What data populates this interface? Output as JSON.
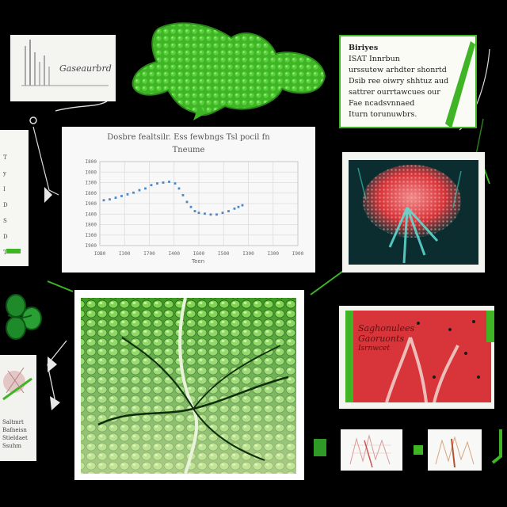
{
  "palette": {
    "background": "#000000",
    "accent_green": "#3fb526",
    "tissue_red": "#d8353a",
    "chart_point": "#4f87c4"
  },
  "icons": [
    "leaf-cell-icon",
    "clover-icon",
    "plus-arrow-icon",
    "leaf-square-icon",
    "hook-arrow-icon"
  ],
  "top_thumb": {
    "label": "Gaseaurbrd"
  },
  "chart_card": {
    "title_line1": "Dosbre fealtsilr. Ess fewbngs Tsl pocil fn",
    "title_line2": "Tneume",
    "xlabel": "Teen"
  },
  "chart_data": {
    "type": "scatter",
    "title": "Dosbre fealtsilr. Ess fewbngs Tsl pocil fn Tneume",
    "xlabel": "Teen",
    "ylabel": "",
    "x_tick_labels": [
      "IOB0",
      "I300",
      "I700",
      "I400",
      "I600",
      "I500",
      "I300",
      "I300",
      "I900"
    ],
    "y_tick_labels": [
      "I800",
      "I000",
      "I300",
      "I800",
      "I900",
      "I400",
      "I800",
      "I300",
      "I900"
    ],
    "xlim": [
      0,
      100
    ],
    "ylim": [
      0,
      100
    ],
    "grid": true,
    "series": [
      {
        "points": [
          [
            2,
            54
          ],
          [
            5,
            55
          ],
          [
            8,
            57
          ],
          [
            11,
            59
          ],
          [
            14,
            61
          ],
          [
            17,
            63
          ],
          [
            20,
            66
          ],
          [
            23,
            68
          ],
          [
            26,
            72
          ],
          [
            29,
            74
          ],
          [
            32,
            75
          ],
          [
            35,
            76
          ],
          [
            38,
            74
          ],
          [
            40,
            68
          ],
          [
            42,
            60
          ],
          [
            44,
            52
          ],
          [
            46,
            46
          ],
          [
            48,
            41
          ],
          [
            50,
            39
          ],
          [
            53,
            38
          ],
          [
            56,
            37
          ],
          [
            59,
            37
          ],
          [
            62,
            39
          ],
          [
            65,
            41
          ],
          [
            68,
            44
          ],
          [
            70,
            46
          ],
          [
            72,
            48
          ]
        ]
      }
    ]
  },
  "note_card": {
    "lines": [
      "Biriyes",
      "ISAT Innrbun",
      "urssutew arhdter shonrtd",
      "Dsib ree oiwry shhtuz aud",
      "sattrer ourrtawcues our",
      "Fae ncadsvnnaed",
      "Iturn torunuwbrs."
    ]
  },
  "left_panel": {
    "lines": [
      "T",
      "y",
      "I",
      "D",
      "S",
      "D",
      "T"
    ]
  },
  "tissue_card": {
    "lines": [
      "Saghonulees",
      "Gaoruonts",
      "Isrnwcet"
    ]
  },
  "bottom_left_card": {
    "lines": [
      "Saltmrt",
      "Bafneisn",
      "Stieldaet",
      "Ssuhm"
    ]
  }
}
